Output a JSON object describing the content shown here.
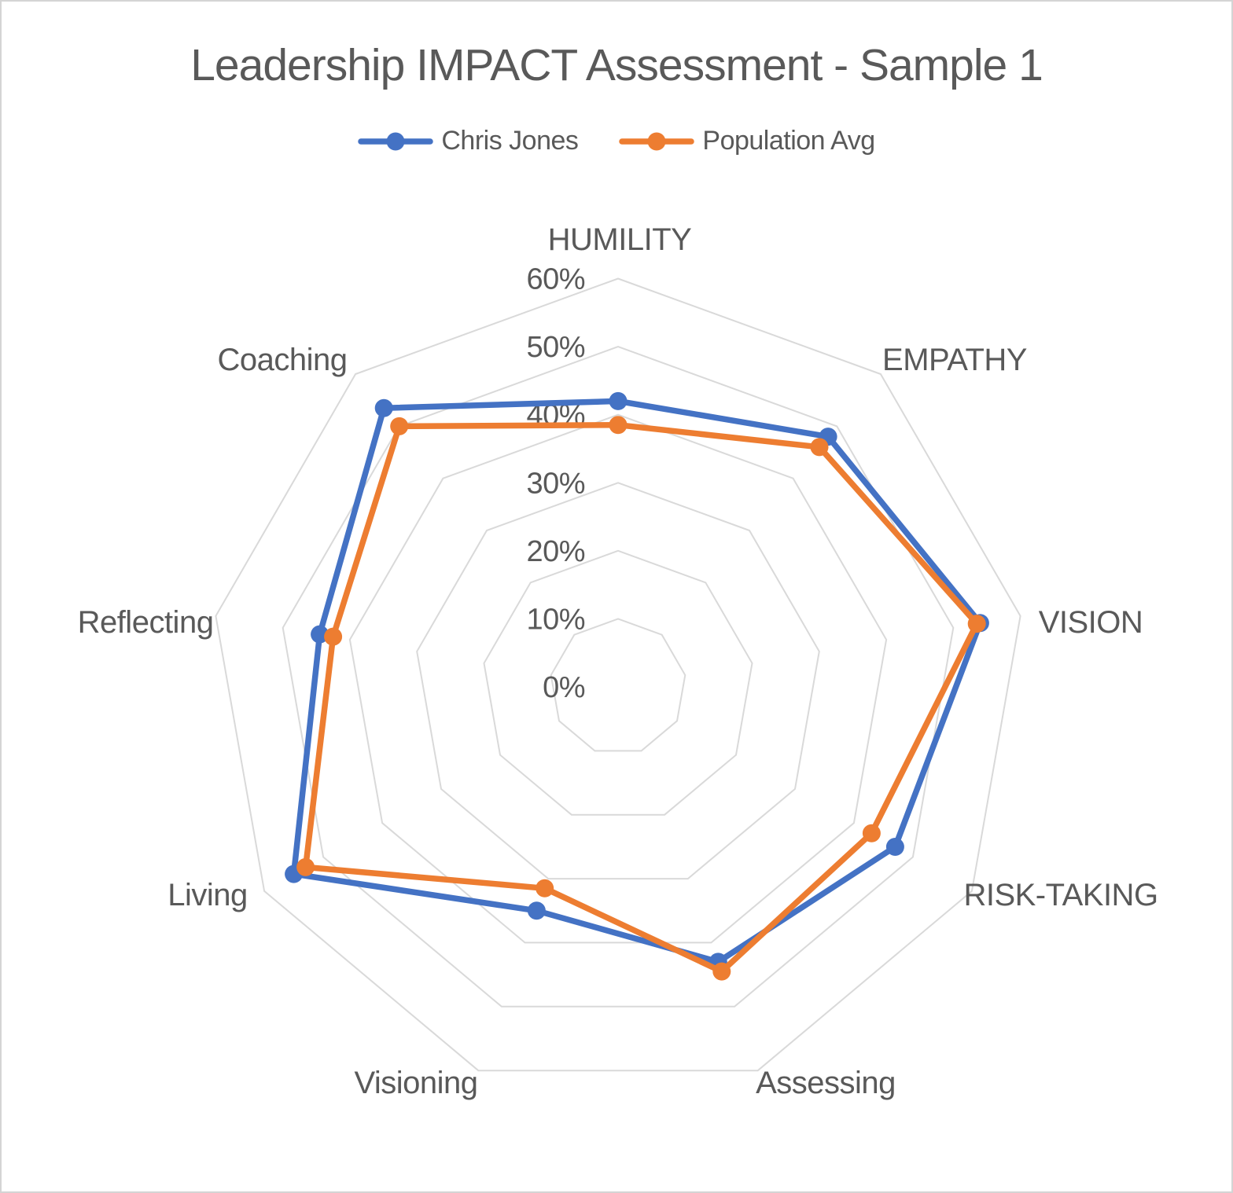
{
  "title": "Leadership IMPACT Assessment - Sample 1",
  "legend": {
    "items": [
      {
        "label": "Chris Jones",
        "color": "#4472C4"
      },
      {
        "label": "Population Avg",
        "color": "#ED7D31"
      }
    ]
  },
  "colors": {
    "text": "#595959",
    "gridline": "#D9D9D9",
    "background": "#FFFFFF",
    "frame_border": "#D4D4D4",
    "series1": "#4472C4",
    "series2": "#ED7D31"
  },
  "chart_data": {
    "type": "radar",
    "title": "Leadership IMPACT Assessment - Sample 1",
    "categories": [
      "HUMILITY",
      "EMPATHY",
      "VISION",
      "RISK-TAKING",
      "Assessing",
      "Visioning",
      "Living",
      "Reflecting",
      "Coaching"
    ],
    "series": [
      {
        "name": "Chris Jones",
        "color": "#4472C4",
        "values": [
          42,
          48,
          54,
          47,
          43,
          35,
          55,
          44.5,
          53.5
        ]
      },
      {
        "name": "Population Avg",
        "color": "#ED7D31",
        "values": [
          38.5,
          46,
          53.5,
          43,
          44.5,
          31.5,
          53,
          42.5,
          50
        ]
      }
    ],
    "axis": {
      "min": 0,
      "max": 60,
      "step": 10,
      "unit": "percent",
      "tick_labels": [
        "0%",
        "10%",
        "20%",
        "30%",
        "40%",
        "50%",
        "60%"
      ]
    },
    "grid": {
      "rings": "concentric-polygons",
      "spokes": false
    },
    "legend_position": "top"
  }
}
